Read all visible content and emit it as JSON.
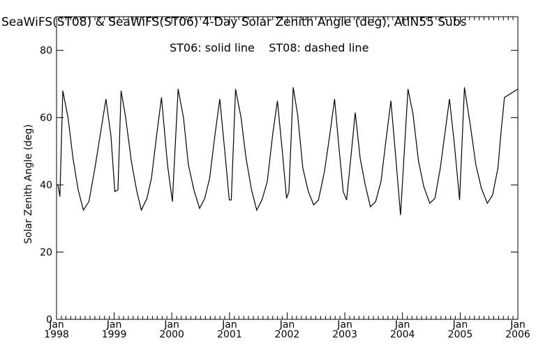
{
  "chart_data": {
    "type": "line",
    "title": "SeaWiFS(ST08) & SeaWiFS(ST06) 4-Day Solar Zenith Angle (deg), AtlN55 Subs",
    "annotation": "ST06: solid line    ST08: dashed line",
    "xlabel": "",
    "ylabel": "Solar Zenith Angle (deg)",
    "xlim": [
      "1998-01-01",
      "2006-01-01"
    ],
    "ylim": [
      0,
      90
    ],
    "y_ticks": [
      "0",
      "20",
      "40",
      "60",
      "80"
    ],
    "x_ticks": [
      {
        "month": "Jan",
        "year": "1998"
      },
      {
        "month": "Jan",
        "year": "1999"
      },
      {
        "month": "Jan",
        "year": "2000"
      },
      {
        "month": "Jan",
        "year": "2001"
      },
      {
        "month": "Jan",
        "year": "2002"
      },
      {
        "month": "Jan",
        "year": "2003"
      },
      {
        "month": "Jan",
        "year": "2004"
      },
      {
        "month": "Jan",
        "year": "2005"
      },
      {
        "month": "Jan",
        "year": "2006"
      }
    ],
    "grid": false,
    "line_color": "#000000",
    "series": [
      {
        "style": "solid",
        "points": [
          [
            "1997-12-31",
            40.0
          ],
          [
            "1998-01-07",
            40.0
          ],
          [
            "1998-01-12",
            39.5
          ],
          [
            "1998-01-22",
            36.5
          ],
          [
            "1998-02-10",
            68.0
          ],
          [
            "1998-03-15",
            60.0
          ],
          [
            "1998-04-15",
            48.0
          ],
          [
            "1998-05-18",
            38.5
          ],
          [
            "1998-06-20",
            32.5
          ],
          [
            "1998-07-25",
            35.0
          ],
          [
            "1998-09-01",
            45.0
          ],
          [
            "1998-10-05",
            55.0
          ],
          [
            "1998-11-10",
            65.5
          ],
          [
            "1998-12-12",
            54.5
          ],
          [
            "1999-01-05",
            38.0
          ],
          [
            "1999-01-25",
            38.5
          ],
          [
            "1999-02-14",
            68.0
          ],
          [
            "1999-03-15",
            60.0
          ],
          [
            "1999-04-20",
            47.0
          ],
          [
            "1999-05-25",
            38.0
          ],
          [
            "1999-06-22",
            32.5
          ],
          [
            "1999-07-28",
            36.0
          ],
          [
            "1999-08-25",
            42.0
          ],
          [
            "1999-09-28",
            55.0
          ],
          [
            "1999-10-28",
            66.0
          ],
          [
            "1999-12-05",
            46.0
          ],
          [
            "2000-01-05",
            35.0
          ],
          [
            "2000-02-10",
            68.5
          ],
          [
            "2000-03-15",
            60.0
          ],
          [
            "2000-04-15",
            46.0
          ],
          [
            "2000-05-20",
            38.5
          ],
          [
            "2000-06-25",
            33.0
          ],
          [
            "2000-07-28",
            36.0
          ],
          [
            "2000-08-28",
            42.0
          ],
          [
            "2000-10-01",
            55.0
          ],
          [
            "2000-10-31",
            65.5
          ],
          [
            "2000-12-02",
            50.0
          ],
          [
            "2000-12-30",
            35.5
          ],
          [
            "2001-01-12",
            35.5
          ],
          [
            "2001-02-08",
            68.5
          ],
          [
            "2001-03-15",
            60.0
          ],
          [
            "2001-04-15",
            48.0
          ],
          [
            "2001-05-20",
            38.5
          ],
          [
            "2001-06-22",
            32.5
          ],
          [
            "2001-07-25",
            35.5
          ],
          [
            "2001-08-28",
            41.0
          ],
          [
            "2001-10-01",
            55.0
          ],
          [
            "2001-10-31",
            65.0
          ],
          [
            "2001-12-01",
            50.0
          ],
          [
            "2001-12-28",
            36.0
          ],
          [
            "2002-01-12",
            38.0
          ],
          [
            "2002-02-08",
            69.0
          ],
          [
            "2002-03-08",
            61.0
          ],
          [
            "2002-04-10",
            45.0
          ],
          [
            "2002-05-15",
            38.0
          ],
          [
            "2002-06-18",
            34.0
          ],
          [
            "2002-07-18",
            35.5
          ],
          [
            "2002-08-25",
            44.0
          ],
          [
            "2002-09-28",
            55.0
          ],
          [
            "2002-10-28",
            65.5
          ],
          [
            "2002-11-25",
            51.0
          ],
          [
            "2002-12-22",
            38.0
          ],
          [
            "2003-01-12",
            35.5
          ],
          [
            "2003-02-12",
            50.0
          ],
          [
            "2003-03-08",
            61.5
          ],
          [
            "2003-04-08",
            48.0
          ],
          [
            "2003-05-10",
            40.0
          ],
          [
            "2003-06-12",
            33.5
          ],
          [
            "2003-07-15",
            35.0
          ],
          [
            "2003-08-18",
            41.0
          ],
          [
            "2003-09-18",
            53.0
          ],
          [
            "2003-10-20",
            65.0
          ],
          [
            "2003-11-20",
            48.0
          ],
          [
            "2003-12-20",
            31.0
          ],
          [
            "2004-02-05",
            68.5
          ],
          [
            "2004-03-08",
            61.0
          ],
          [
            "2004-04-12",
            47.0
          ],
          [
            "2004-05-15",
            39.5
          ],
          [
            "2004-06-22",
            34.5
          ],
          [
            "2004-07-25",
            36.0
          ],
          [
            "2004-08-28",
            45.0
          ],
          [
            "2004-09-25",
            55.0
          ],
          [
            "2004-10-25",
            65.5
          ],
          [
            "2004-11-25",
            52.0
          ],
          [
            "2004-12-28",
            35.5
          ],
          [
            "2005-01-28",
            69.0
          ],
          [
            "2005-03-05",
            58.0
          ],
          [
            "2005-04-10",
            46.0
          ],
          [
            "2005-05-15",
            39.0
          ],
          [
            "2005-06-22",
            34.5
          ],
          [
            "2005-07-25",
            37.0
          ],
          [
            "2005-08-28",
            45.0
          ],
          [
            "2005-09-15",
            55.0
          ],
          [
            "2005-10-08",
            66.0
          ],
          [
            "2006-01-01",
            68.5
          ]
        ]
      }
    ]
  }
}
